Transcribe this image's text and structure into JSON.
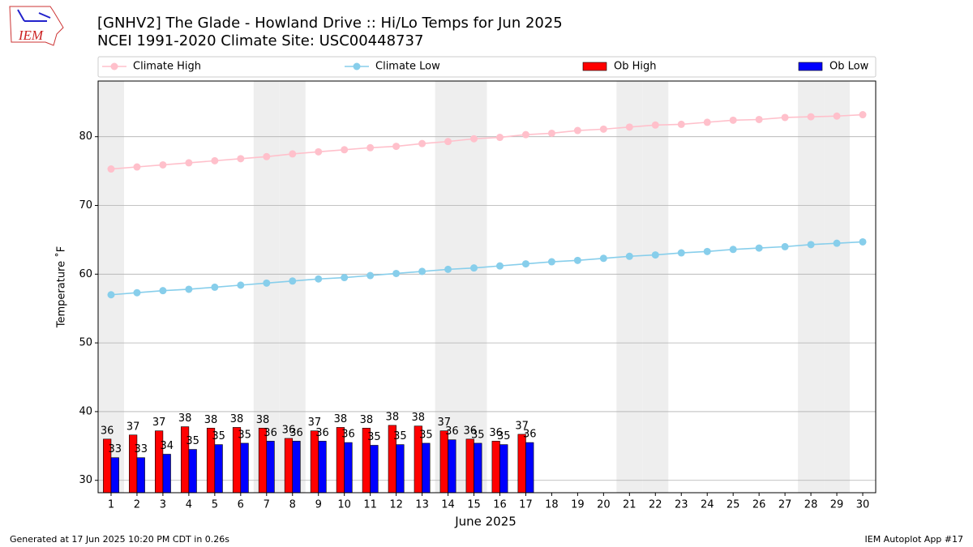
{
  "chart_data": {
    "type": "bar",
    "title": "[GNHV2] The Glade - Howland Drive :: Hi/Lo Temps for Jun 2025",
    "subtitle": "NCEI 1991-2020 Climate Site: USC00448737",
    "logo_text": "IEM",
    "x_label": "June 2025",
    "y_label": "Temperature ˚F",
    "footer_left": "Generated at 17 Jun 2025 10:20 PM CDT in 0.26s",
    "footer_right": "IEM Autoplot App #17",
    "x": [
      1,
      2,
      3,
      4,
      5,
      6,
      7,
      8,
      9,
      10,
      11,
      12,
      13,
      14,
      15,
      16,
      17,
      18,
      19,
      20,
      21,
      22,
      23,
      24,
      25,
      26,
      27,
      28,
      29,
      30
    ],
    "xlim": [
      0.5,
      30.5
    ],
    "xticks": [
      1,
      2,
      3,
      4,
      5,
      6,
      7,
      8,
      9,
      10,
      11,
      12,
      13,
      14,
      15,
      16,
      17,
      18,
      19,
      20,
      21,
      22,
      23,
      24,
      25,
      26,
      27,
      28,
      29,
      30
    ],
    "ylim": [
      28.2,
      88.1
    ],
    "yticks": [
      30,
      40,
      50,
      60,
      70,
      80
    ],
    "grid": true,
    "shaded_days": [
      1,
      7,
      8,
      14,
      15,
      21,
      22,
      28,
      29
    ],
    "shade_color": "#eeeeee",
    "series": [
      {
        "name": "Climate High",
        "type": "line",
        "color": "#ffc0cb",
        "values": [
          75.3,
          75.6,
          75.9,
          76.2,
          76.5,
          76.8,
          77.1,
          77.5,
          77.8,
          78.1,
          78.4,
          78.6,
          79.0,
          79.3,
          79.7,
          79.9,
          80.3,
          80.5,
          80.9,
          81.1,
          81.4,
          81.7,
          81.8,
          82.1,
          82.4,
          82.5,
          82.8,
          82.9,
          83.0,
          83.2
        ]
      },
      {
        "name": "Climate Low",
        "type": "line",
        "color": "#87ceeb",
        "values": [
          57.0,
          57.3,
          57.6,
          57.8,
          58.1,
          58.4,
          58.7,
          59.0,
          59.3,
          59.5,
          59.8,
          60.1,
          60.4,
          60.7,
          60.9,
          61.2,
          61.5,
          61.8,
          62.0,
          62.3,
          62.6,
          62.8,
          63.1,
          63.3,
          63.6,
          63.8,
          64.0,
          64.3,
          64.5,
          64.7
        ]
      },
      {
        "name": "Ob High",
        "type": "bar",
        "color": "#ff0000",
        "values": [
          36.0,
          36.6,
          37.2,
          37.8,
          37.6,
          37.7,
          37.6,
          36.1,
          37.2,
          37.7,
          37.6,
          38.0,
          37.9,
          37.2,
          36.0,
          35.7,
          36.7,
          null,
          null,
          null,
          null,
          null,
          null,
          null,
          null,
          null,
          null,
          null,
          null,
          null
        ],
        "value_labels": [
          "36",
          "37",
          "37",
          "38",
          "38",
          "38",
          "38",
          "36",
          "37",
          "38",
          "38",
          "38",
          "38",
          "37",
          "36",
          "36",
          "37",
          null,
          null,
          null,
          null,
          null,
          null,
          null,
          null,
          null,
          null,
          null,
          null,
          null
        ]
      },
      {
        "name": "Ob Low",
        "type": "bar",
        "color": "#0000ff",
        "values": [
          33.3,
          33.3,
          33.8,
          34.5,
          35.2,
          35.4,
          35.7,
          35.7,
          35.7,
          35.5,
          35.1,
          35.2,
          35.4,
          35.9,
          35.4,
          35.2,
          35.5,
          null,
          null,
          null,
          null,
          null,
          null,
          null,
          null,
          null,
          null,
          null,
          null,
          null
        ],
        "value_labels": [
          "33",
          "33",
          "34",
          "35",
          "35",
          "35",
          "36",
          "36",
          "36",
          "36",
          "35",
          "35",
          "35",
          "36",
          "35",
          "35",
          "36",
          null,
          null,
          null,
          null,
          null,
          null,
          null,
          null,
          null,
          null,
          null,
          null,
          null
        ]
      }
    ]
  }
}
